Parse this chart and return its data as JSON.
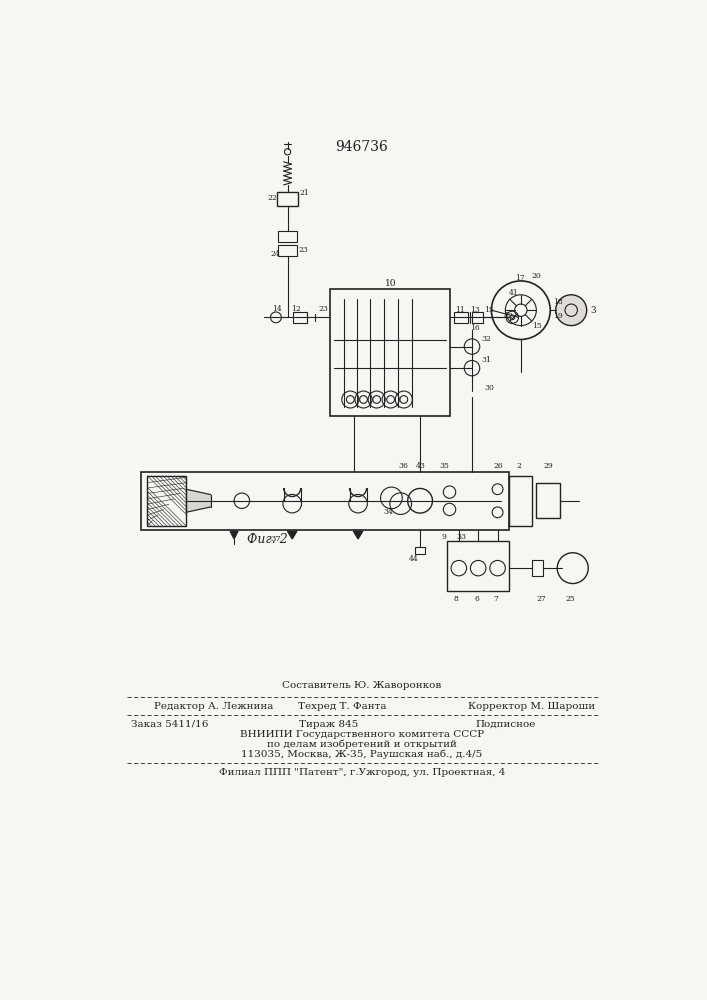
{
  "patent_number": "946736",
  "fig_label": "Фиг. 2",
  "bg_color": "#f8f6f2",
  "line_color": "#222222",
  "footer": {
    "sestavitel": "Составитель Ю. Жаворонков",
    "redaktor": "Редактор А. Лежнина",
    "tehred": "Техред Т. Фанта",
    "korrektor": "Корректор М. Шароши",
    "zakaz": "Заказ 5411/16",
    "tirazh": "Тираж 845",
    "podpisnoe": "Подписное",
    "vniipI": "ВНИИПИ Государственного комитета СССР",
    "podelam": "по делам изобретений и открытий",
    "address": "113035, Москва, Ж-35, Раушская наб., д.4/5",
    "filial": "Филиал ППП \"Патент\", г.Ужгород, ул. Проектная, 4"
  }
}
